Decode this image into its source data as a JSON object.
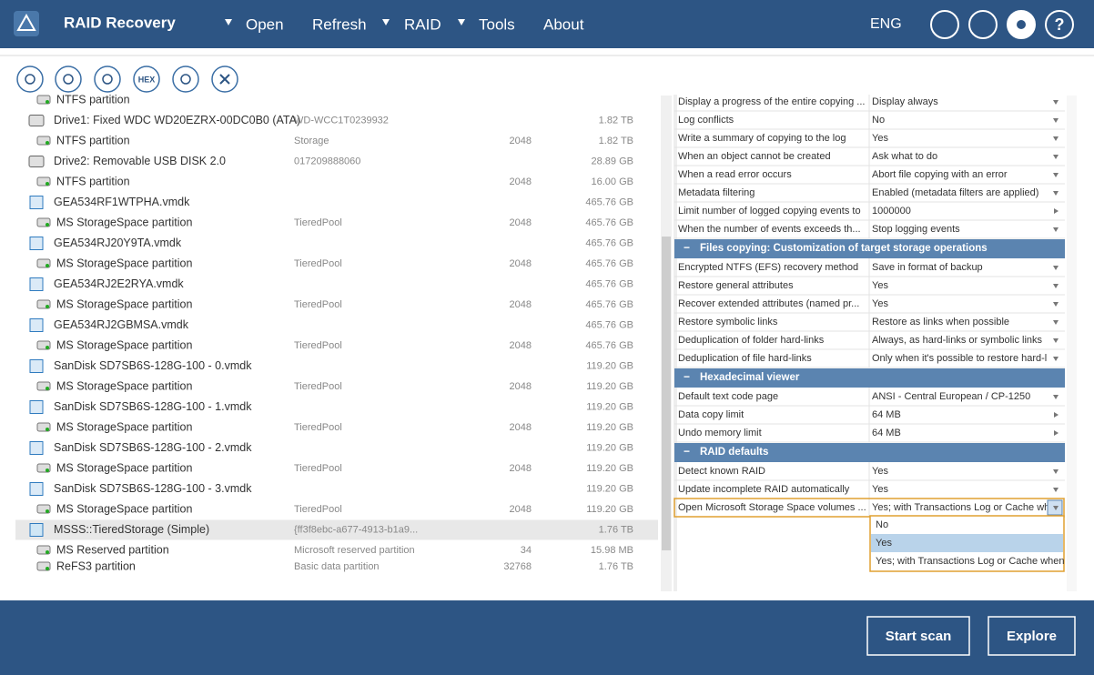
{
  "header": {
    "app_title": "RAID Recovery",
    "menu": [
      "Open",
      "Refresh",
      "RAID",
      "Tools",
      "About"
    ],
    "language": "ENG"
  },
  "toolbar": {
    "hex_label": "HEX"
  },
  "tree": {
    "rows": [
      {
        "name": "NTFS partition"
      },
      {
        "name": "Drive1: Fixed WDC WD20EZRX-00DC0B0 (ATA)",
        "info": "WD-WCC1T0239932",
        "size": "1.82 TB"
      },
      {
        "name": "NTFS partition",
        "info": "Storage",
        "start": "2048",
        "size": "1.82 TB"
      },
      {
        "name": "Drive2: Removable USB DISK 2.0",
        "info": "017209888060",
        "size": "28.89 GB"
      },
      {
        "name": "NTFS partition",
        "start": "2048",
        "size": "16.00 GB"
      },
      {
        "name": "GEA534RF1WTPHA.vmdk",
        "size": "465.76 GB"
      },
      {
        "name": "MS StorageSpace partition",
        "info": "TieredPool",
        "start": "2048",
        "size": "465.76 GB"
      },
      {
        "name": "GEA534RJ20Y9TA.vmdk",
        "size": "465.76 GB"
      },
      {
        "name": "MS StorageSpace partition",
        "info": "TieredPool",
        "start": "2048",
        "size": "465.76 GB"
      },
      {
        "name": "GEA534RJ2E2RYA.vmdk",
        "size": "465.76 GB"
      },
      {
        "name": "MS StorageSpace partition",
        "info": "TieredPool",
        "start": "2048",
        "size": "465.76 GB"
      },
      {
        "name": "GEA534RJ2GBMSA.vmdk",
        "size": "465.76 GB"
      },
      {
        "name": "MS StorageSpace partition",
        "info": "TieredPool",
        "start": "2048",
        "size": "465.76 GB"
      },
      {
        "name": "SanDisk SD7SB6S-128G-100 - 0.vmdk",
        "size": "119.20 GB"
      },
      {
        "name": "MS StorageSpace partition",
        "info": "TieredPool",
        "start": "2048",
        "size": "119.20 GB"
      },
      {
        "name": "SanDisk SD7SB6S-128G-100 - 1.vmdk",
        "size": "119.20 GB"
      },
      {
        "name": "MS StorageSpace partition",
        "info": "TieredPool",
        "start": "2048",
        "size": "119.20 GB"
      },
      {
        "name": "SanDisk SD7SB6S-128G-100 - 2.vmdk",
        "size": "119.20 GB"
      },
      {
        "name": "MS StorageSpace partition",
        "info": "TieredPool",
        "start": "2048",
        "size": "119.20 GB"
      },
      {
        "name": "SanDisk SD7SB6S-128G-100 - 3.vmdk",
        "size": "119.20 GB"
      },
      {
        "name": "MS StorageSpace partition",
        "info": "TieredPool",
        "start": "2048",
        "size": "119.20 GB"
      },
      {
        "name": "MSSS::TieredStorage (Simple)",
        "info": "{ff3f8ebc-a677-4913-b1a9...",
        "size": "1.76 TB"
      },
      {
        "name": "MS Reserved partition",
        "info": "Microsoft reserved partition",
        "start": "34",
        "size": "15.98 MB"
      },
      {
        "name": "ReFS3 partition",
        "info": "Basic data partition",
        "start": "32768",
        "size": "1.76 TB"
      }
    ]
  },
  "settings": {
    "groups": [
      {
        "items": [
          {
            "name": "Display a progress of the entire copying ...",
            "value": "Display always"
          },
          {
            "name": "Log conflicts",
            "value": "No"
          },
          {
            "name": "Write a summary of copying to the log",
            "value": "Yes"
          },
          {
            "name": "When an object cannot be created",
            "value": "Ask what to do"
          },
          {
            "name": "When a read error occurs",
            "value": "Abort file copying with an error"
          },
          {
            "name": "Metadata filtering",
            "value": "Enabled (metadata filters are applied)"
          },
          {
            "name": "Limit number of logged copying events to",
            "value": "1000000"
          },
          {
            "name": "When the number of events exceeds th...",
            "value": "Stop logging events"
          }
        ]
      },
      {
        "title": "Files copying: Customization of target storage operations",
        "items": [
          {
            "name": "Encrypted NTFS (EFS) recovery method",
            "value": "Save in format of backup"
          },
          {
            "name": "Restore general attributes",
            "value": "Yes"
          },
          {
            "name": "Recover extended attributes (named pr...",
            "value": "Yes"
          },
          {
            "name": "Restore symbolic links",
            "value": "Restore as links when possible"
          },
          {
            "name": "Deduplication of folder hard-links",
            "value": "Always, as hard-links or symbolic links"
          },
          {
            "name": "Deduplication of file hard-links",
            "value": "Only when it's possible to restore hard-l"
          }
        ]
      },
      {
        "title": "Hexadecimal viewer",
        "items": [
          {
            "name": "Default text code page",
            "value": "ANSI - Central European / CP-1250"
          },
          {
            "name": "Data copy limit",
            "value": "64 MB"
          },
          {
            "name": "Undo memory limit",
            "value": "64 MB"
          }
        ]
      },
      {
        "title": "RAID defaults",
        "items": [
          {
            "name": "Detect known RAID",
            "value": "Yes"
          },
          {
            "name": "Update incomplete RAID automatically",
            "value": "Yes"
          },
          {
            "name": "Open Microsoft Storage Space volumes ...",
            "value": "Yes; with Transactions Log or Cache wh"
          }
        ]
      }
    ],
    "dropdown": [
      "No",
      "Yes",
      "Yes; with Transactions Log or Cache when"
    ]
  },
  "buttons": {
    "start_scan": "Start scan",
    "explore": "Explore"
  }
}
